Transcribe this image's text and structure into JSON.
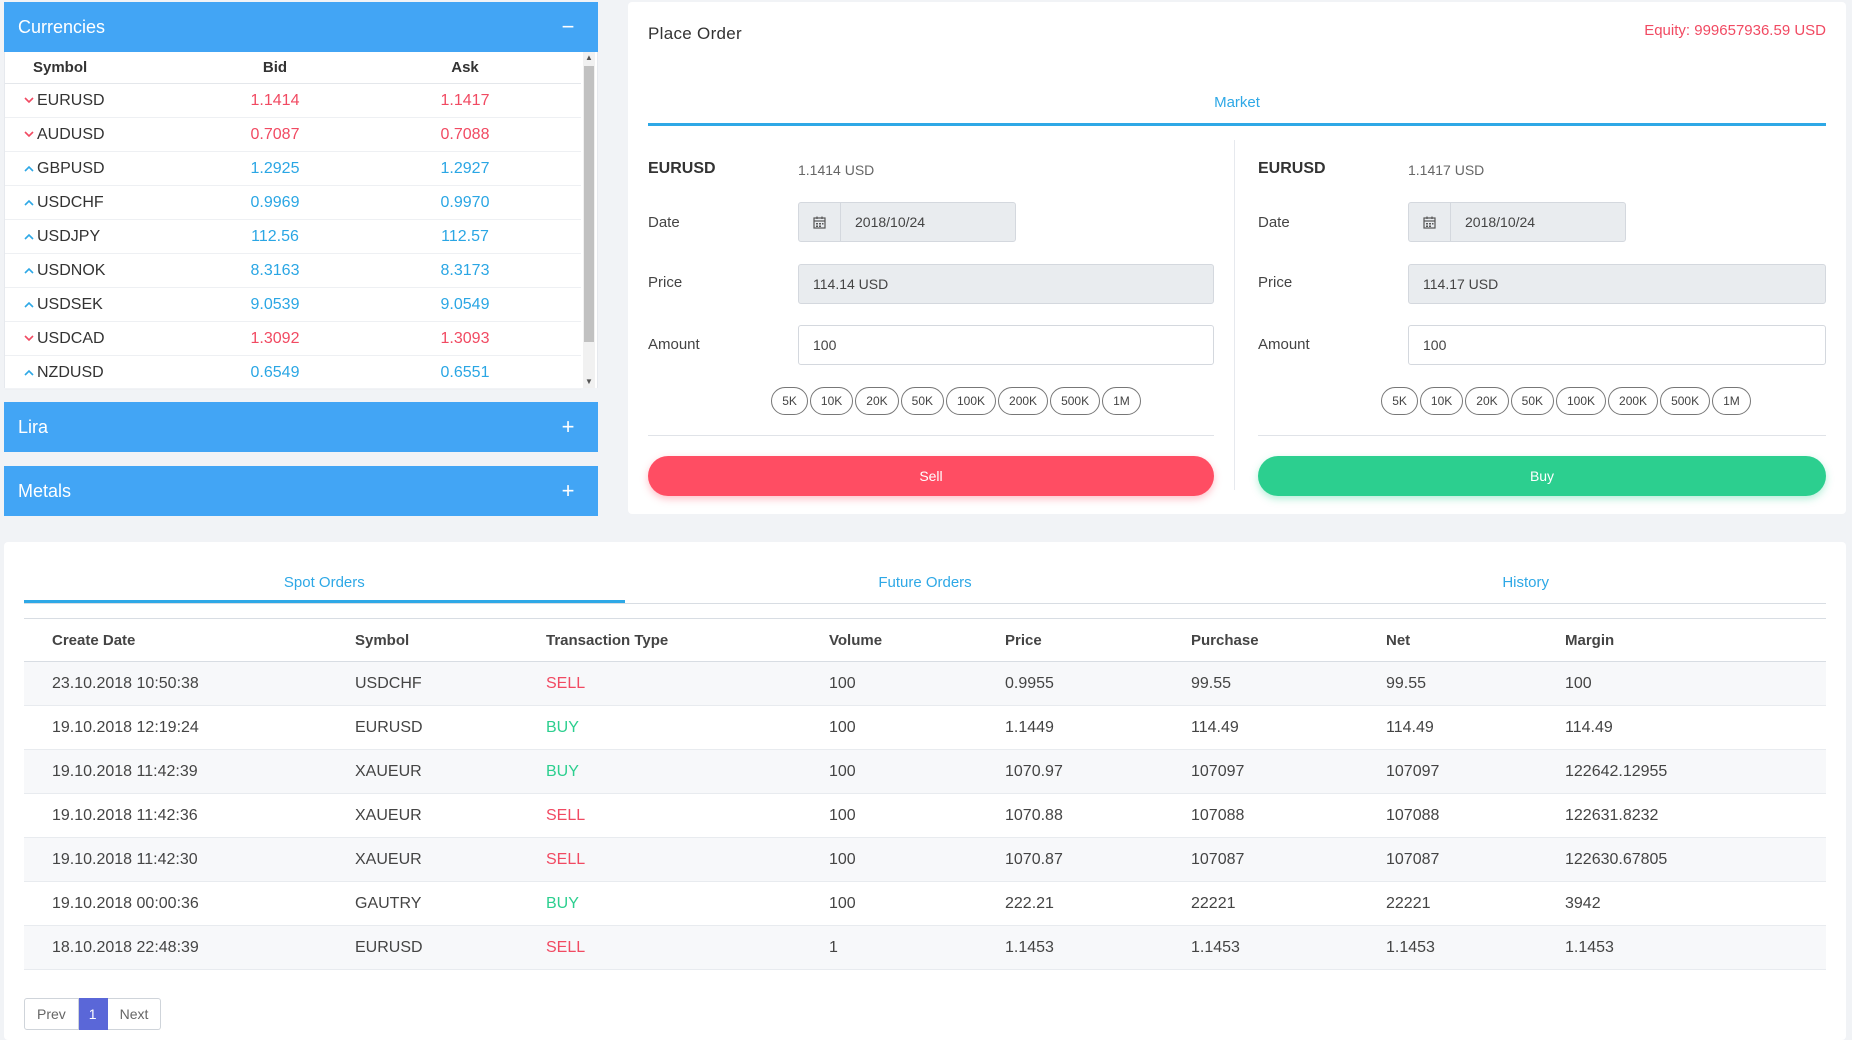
{
  "currencies": {
    "title": "Currencies",
    "toggle": "−",
    "columns": {
      "symbol": "Symbol",
      "bid": "Bid",
      "ask": "Ask"
    },
    "rows": [
      {
        "symbol": "EURUSD",
        "bid": "1.1414",
        "ask": "1.1417",
        "trend": "down"
      },
      {
        "symbol": "AUDUSD",
        "bid": "0.7087",
        "ask": "0.7088",
        "trend": "down"
      },
      {
        "symbol": "GBPUSD",
        "bid": "1.2925",
        "ask": "1.2927",
        "trend": "up"
      },
      {
        "symbol": "USDCHF",
        "bid": "0.9969",
        "ask": "0.9970",
        "trend": "up"
      },
      {
        "symbol": "USDJPY",
        "bid": "112.56",
        "ask": "112.57",
        "trend": "up"
      },
      {
        "symbol": "USDNOK",
        "bid": "8.3163",
        "ask": "8.3173",
        "trend": "up"
      },
      {
        "symbol": "USDSEK",
        "bid": "9.0539",
        "ask": "9.0549",
        "trend": "up"
      },
      {
        "symbol": "USDCAD",
        "bid": "1.3092",
        "ask": "1.3093",
        "trend": "down"
      },
      {
        "symbol": "NZDUSD",
        "bid": "0.6549",
        "ask": "0.6551",
        "trend": "up"
      }
    ]
  },
  "lira": {
    "title": "Lira",
    "toggle": "+"
  },
  "metals": {
    "title": "Metals",
    "toggle": "+"
  },
  "order": {
    "title": "Place Order",
    "equity": "Equity: 999657936.59 USD",
    "tab": "Market",
    "labels": {
      "date": "Date",
      "price": "Price",
      "amount": "Amount"
    },
    "chips": [
      "5K",
      "10K",
      "20K",
      "50K",
      "100K",
      "200K",
      "500K",
      "1M"
    ],
    "sell": {
      "symbol": "EURUSD",
      "quote": "1.1414 USD",
      "date": "2018/10/24",
      "price": "114.14 USD",
      "amount": "100",
      "button": "Sell"
    },
    "buy": {
      "symbol": "EURUSD",
      "quote": "1.1417 USD",
      "date": "2018/10/24",
      "price": "114.17 USD",
      "amount": "100",
      "button": "Buy"
    }
  },
  "orders": {
    "tabs": [
      "Spot Orders",
      "Future Orders",
      "History"
    ],
    "columns": [
      "Create Date",
      "Symbol",
      "Transaction Type",
      "Volume",
      "Price",
      "Purchase",
      "Net",
      "Margin"
    ],
    "rows": [
      {
        "date": "23.10.2018 10:50:38",
        "symbol": "USDCHF",
        "type": "SELL",
        "volume": "100",
        "price": "0.9955",
        "purchase": "99.55",
        "net": "99.55",
        "margin": "100"
      },
      {
        "date": "19.10.2018 12:19:24",
        "symbol": "EURUSD",
        "type": "BUY",
        "volume": "100",
        "price": "1.1449",
        "purchase": "114.49",
        "net": "114.49",
        "margin": "114.49"
      },
      {
        "date": "19.10.2018 11:42:39",
        "symbol": "XAUEUR",
        "type": "BUY",
        "volume": "100",
        "price": "1070.97",
        "purchase": "107097",
        "net": "107097",
        "margin": "122642.12955"
      },
      {
        "date": "19.10.2018 11:42:36",
        "symbol": "XAUEUR",
        "type": "SELL",
        "volume": "100",
        "price": "1070.88",
        "purchase": "107088",
        "net": "107088",
        "margin": "122631.8232"
      },
      {
        "date": "19.10.2018 11:42:30",
        "symbol": "XAUEUR",
        "type": "SELL",
        "volume": "100",
        "price": "1070.87",
        "purchase": "107087",
        "net": "107087",
        "margin": "122630.67805"
      },
      {
        "date": "19.10.2018 00:00:36",
        "symbol": "GAUTRY",
        "type": "BUY",
        "volume": "100",
        "price": "222.21",
        "purchase": "22221",
        "net": "22221",
        "margin": "3942"
      },
      {
        "date": "18.10.2018 22:48:39",
        "symbol": "EURUSD",
        "type": "SELL",
        "volume": "1",
        "price": "1.1453",
        "purchase": "1.1453",
        "net": "1.1453",
        "margin": "1.1453"
      }
    ],
    "pager": {
      "prev": "Prev",
      "current": "1",
      "next": "Next"
    }
  },
  "icons": {
    "calendar": "calendar-icon",
    "trend_up": "chevron-up-icon",
    "trend_down": "chevron-down-icon"
  },
  "colors": {
    "accent": "#42a5f5",
    "sell": "#ff4d63",
    "buy": "#2ccf8f",
    "down": "#f14a62",
    "up": "#2aa6e4"
  }
}
